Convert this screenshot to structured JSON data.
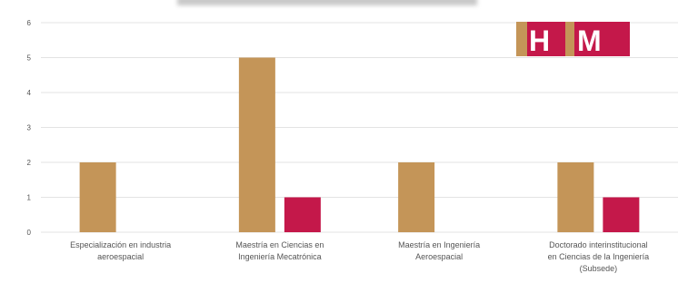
{
  "chart_data": {
    "type": "bar",
    "title": "",
    "xlabel": "",
    "ylabel": "",
    "ylim": [
      0,
      6
    ],
    "yticks": [
      0,
      1,
      2,
      3,
      4,
      5,
      6
    ],
    "grid": true,
    "categories": [
      [
        "Especialización en industria",
        "aeroespacial"
      ],
      [
        "Maestría en Ciencias en",
        "Ingeniería Mecatrónica"
      ],
      [
        "Maestría en Ingeniería",
        "Aeroespacial"
      ],
      [
        "Doctorado interinstitucional",
        "en Ciencias de la Ingeniería",
        "(Subsede)"
      ]
    ],
    "series": [
      {
        "name": "H",
        "color": "#c49558",
        "values": [
          2,
          5,
          2,
          2
        ]
      },
      {
        "name": "M",
        "color": "#c4184a",
        "values": [
          0,
          1,
          0,
          1
        ]
      }
    ],
    "legend": {
      "placement": "top-right",
      "labels": [
        "H",
        "M"
      ],
      "accent": "#c4184a",
      "base": "#c49558"
    }
  }
}
